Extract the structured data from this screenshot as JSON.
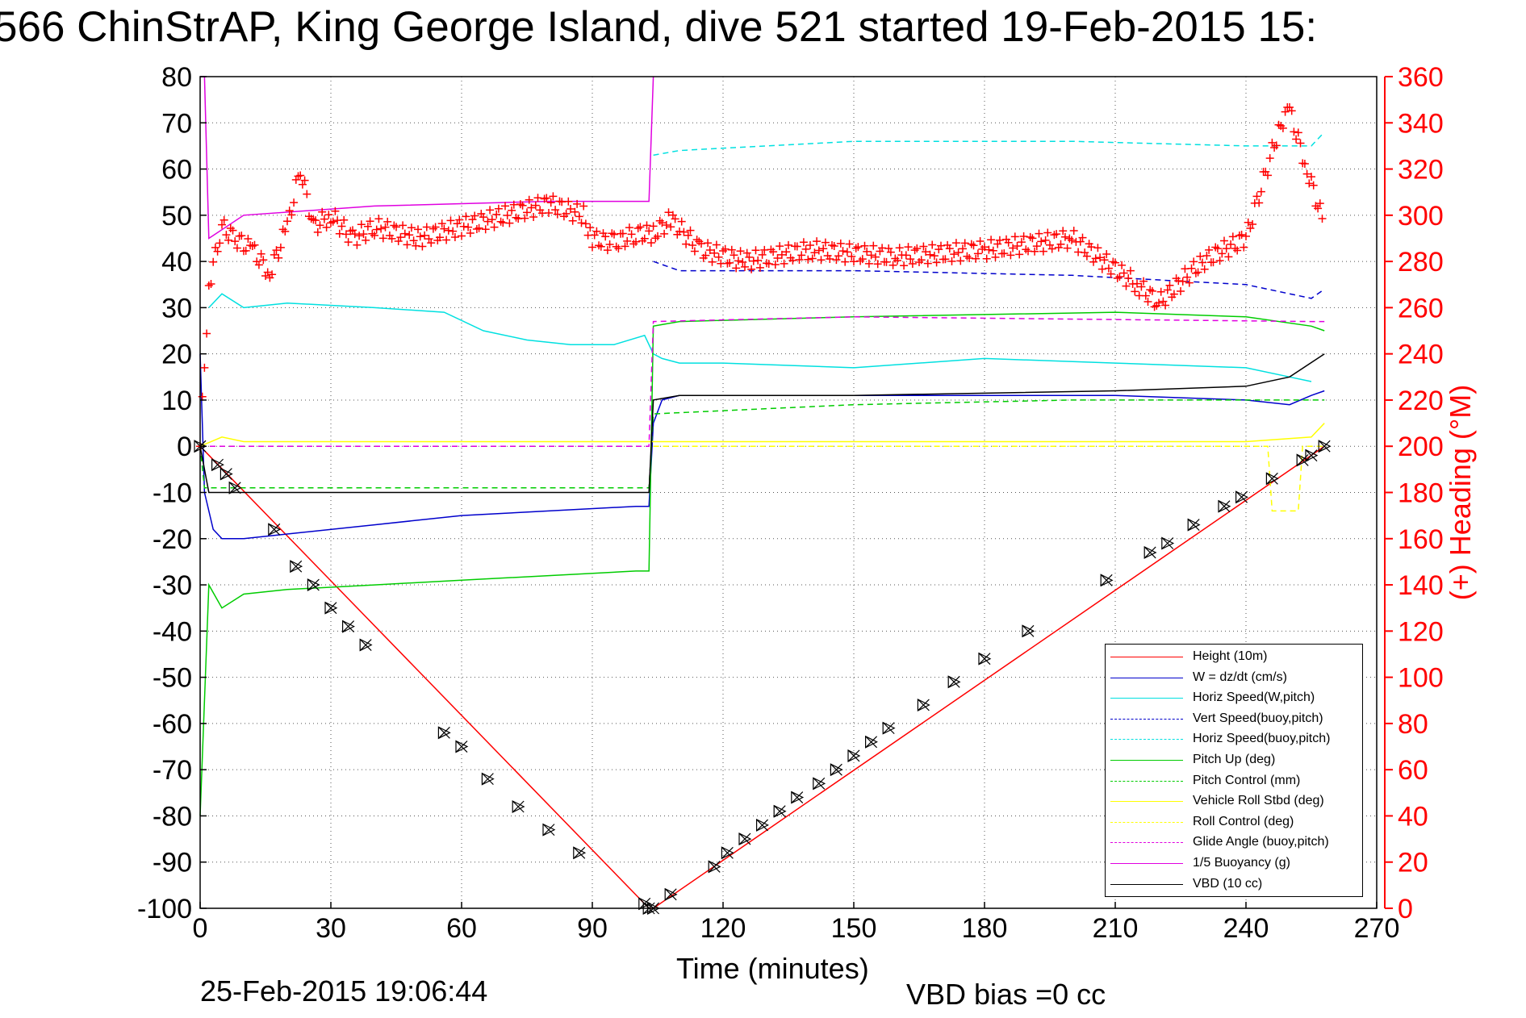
{
  "title": "566 ChinStrAP, King George Island, dive 521 started 19-Feb-2015 15:",
  "footer": {
    "date": "25-Feb-2015 19:06:44",
    "vbd_bias": "VBD bias =0 cc"
  },
  "chart_data": {
    "type": "line",
    "xlabel": "Time (minutes)",
    "ylabel": "",
    "y2label": "(+) Heading (°M)",
    "xlim": [
      0,
      270
    ],
    "ylim": [
      -100,
      80
    ],
    "y2lim": [
      0,
      360
    ],
    "xticks": [
      0,
      30,
      60,
      90,
      120,
      150,
      180,
      210,
      240,
      270
    ],
    "yticks": [
      80,
      70,
      60,
      50,
      40,
      30,
      20,
      10,
      0,
      -10,
      -20,
      -30,
      -40,
      -50,
      -60,
      -70,
      -80,
      -90,
      -100
    ],
    "y2ticks": [
      360,
      340,
      320,
      300,
      280,
      260,
      240,
      220,
      200,
      180,
      160,
      140,
      120,
      100,
      80,
      60,
      40,
      20,
      0
    ],
    "grid": true,
    "legend_position": "bottom-right",
    "colors": {
      "red": "#ff0000",
      "blue": "#0000cc",
      "cyan": "#00e0e0",
      "green": "#00cc00",
      "yellow": "#ffff00",
      "magenta": "#e000e0",
      "black": "#000000"
    },
    "series": [
      {
        "name": "Height (10m)",
        "color": "#ff0000",
        "style": "solid",
        "x": [
          0,
          103,
          104,
          258
        ],
        "y": [
          0,
          -100,
          -100,
          0
        ]
      },
      {
        "name": "W = dz/dt (cm/s)",
        "color": "#0000cc",
        "style": "solid",
        "x": [
          0,
          1,
          3,
          5,
          10,
          20,
          40,
          60,
          80,
          100,
          103,
          104,
          106,
          110,
          120,
          150,
          180,
          210,
          240,
          250,
          255,
          258
        ],
        "y": [
          20,
          -10,
          -18,
          -20,
          -20,
          -19,
          -17,
          -15,
          -14,
          -13,
          -13,
          5,
          10,
          11,
          11,
          11,
          11,
          11,
          10,
          9,
          11,
          12
        ]
      },
      {
        "name": "Horiz Speed(W,pitch)",
        "color": "#00e0e0",
        "style": "solid",
        "x": [
          2,
          5,
          10,
          20,
          40,
          56,
          65,
          75,
          85,
          95,
          102,
          104,
          106,
          110,
          120,
          150,
          180,
          210,
          240,
          250,
          255
        ],
        "y": [
          30,
          33,
          30,
          31,
          30,
          29,
          25,
          23,
          22,
          22,
          24,
          20,
          19,
          18,
          18,
          17,
          19,
          18,
          17,
          15,
          14
        ]
      },
      {
        "name": "Vert Speed(buoy,pitch)",
        "color": "#0000cc",
        "style": "dashed",
        "x": [
          104,
          110,
          150,
          200,
          240,
          255,
          258
        ],
        "y": [
          40,
          38,
          38,
          37,
          35,
          32,
          34
        ]
      },
      {
        "name": "Horiz Speed(buoy,pitch)",
        "color": "#00e0e0",
        "style": "dashed",
        "x": [
          104,
          110,
          150,
          200,
          240,
          255,
          258
        ],
        "y": [
          63,
          64,
          66,
          66,
          65,
          65,
          68
        ]
      },
      {
        "name": "Pitch Up (deg)",
        "color": "#00cc00",
        "style": "solid",
        "x": [
          0,
          2,
          5,
          10,
          20,
          40,
          60,
          80,
          100,
          103,
          104,
          110,
          150,
          210,
          240,
          255,
          258
        ],
        "y": [
          -80,
          -30,
          -35,
          -32,
          -31,
          -30,
          -29,
          -28,
          -27,
          -27,
          26,
          27,
          28,
          29,
          28,
          26,
          25
        ]
      },
      {
        "name": "Pitch Control (mm)",
        "color": "#00cc00",
        "style": "dashed",
        "x": [
          0,
          1,
          100,
          103,
          104,
          150,
          200,
          255,
          258
        ],
        "y": [
          0,
          -9,
          -9,
          -9,
          7,
          9,
          10,
          10,
          10
        ]
      },
      {
        "name": "Vehicle Roll Stbd (deg)",
        "color": "#ffff00",
        "style": "solid",
        "x": [
          0,
          5,
          10,
          100,
          104,
          150,
          200,
          240,
          255,
          258
        ],
        "y": [
          0,
          2,
          1,
          1,
          1,
          1,
          1,
          1,
          2,
          5
        ]
      },
      {
        "name": "Roll Control (deg)",
        "color": "#ffff00",
        "style": "dashed",
        "x": [
          104,
          240,
          245,
          246,
          252,
          253,
          258
        ],
        "y": [
          0,
          0,
          0,
          -14,
          -14,
          0,
          0
        ]
      },
      {
        "name": "Glide Angle (buoy,pitch)",
        "color": "#e000e0",
        "style": "dashed",
        "x": [
          0,
          103,
          104,
          150,
          255,
          258
        ],
        "y": [
          0,
          0,
          27,
          28,
          27,
          27
        ]
      },
      {
        "name": "1/5 Buoyancy (g)",
        "color": "#e000e0",
        "style": "solid",
        "x": [
          0,
          1,
          2,
          10,
          40,
          80,
          102,
          103,
          104
        ],
        "y": [
          80,
          80,
          45,
          50,
          52,
          53,
          53,
          53,
          80
        ]
      },
      {
        "name": "VBD (10 cc)",
        "color": "#000000",
        "style": "solid",
        "x": [
          0,
          2,
          10,
          40,
          100,
          103,
          104,
          110,
          150,
          210,
          240,
          250,
          258
        ],
        "y": [
          0,
          -10,
          -10,
          -10,
          -10,
          -10,
          10,
          11,
          11,
          12,
          13,
          15,
          20
        ]
      },
      {
        "name": "(+) Heading (°M)",
        "axis": "right",
        "color": "#ff0000",
        "style": "plus-markers",
        "x": [
          0,
          2,
          5,
          8,
          12,
          16,
          20,
          23,
          26,
          30,
          35,
          40,
          50,
          60,
          70,
          80,
          88,
          90,
          95,
          100,
          104,
          108,
          115,
          125,
          140,
          160,
          180,
          200,
          215,
          220,
          230,
          240,
          248,
          250,
          254,
          258
        ],
        "y": [
          200,
          270,
          295,
          290,
          285,
          275,
          295,
          320,
          295,
          300,
          290,
          295,
          290,
          295,
          300,
          305,
          300,
          290,
          288,
          292,
          292,
          298,
          285,
          280,
          285,
          282,
          285,
          290,
          270,
          262,
          280,
          290,
          340,
          345,
          320,
          295
        ]
      }
    ],
    "markers": {
      "name": "Height (10m)",
      "symbol": "triangle-x",
      "x": [
        0,
        4,
        6,
        8,
        17,
        22,
        26,
        30,
        34,
        38,
        56,
        60,
        66,
        73,
        80,
        87,
        102,
        103,
        104,
        108,
        118,
        121,
        125,
        129,
        133,
        137,
        142,
        146,
        150,
        154,
        158,
        166,
        173,
        180,
        190,
        208,
        218,
        222,
        228,
        235,
        239,
        246,
        253,
        255,
        258
      ],
      "y": [
        0,
        -4,
        -6,
        -9,
        -18,
        -26,
        -30,
        -35,
        -39,
        -43,
        -62,
        -65,
        -72,
        -78,
        -83,
        -88,
        -99,
        -100,
        -100,
        -97,
        -91,
        -88,
        -85,
        -82,
        -79,
        -76,
        -73,
        -70,
        -67,
        -64,
        -61,
        -56,
        -51,
        -46,
        -40,
        -29,
        -23,
        -21,
        -17,
        -13,
        -11,
        -7,
        -3,
        -2,
        0
      ]
    }
  }
}
